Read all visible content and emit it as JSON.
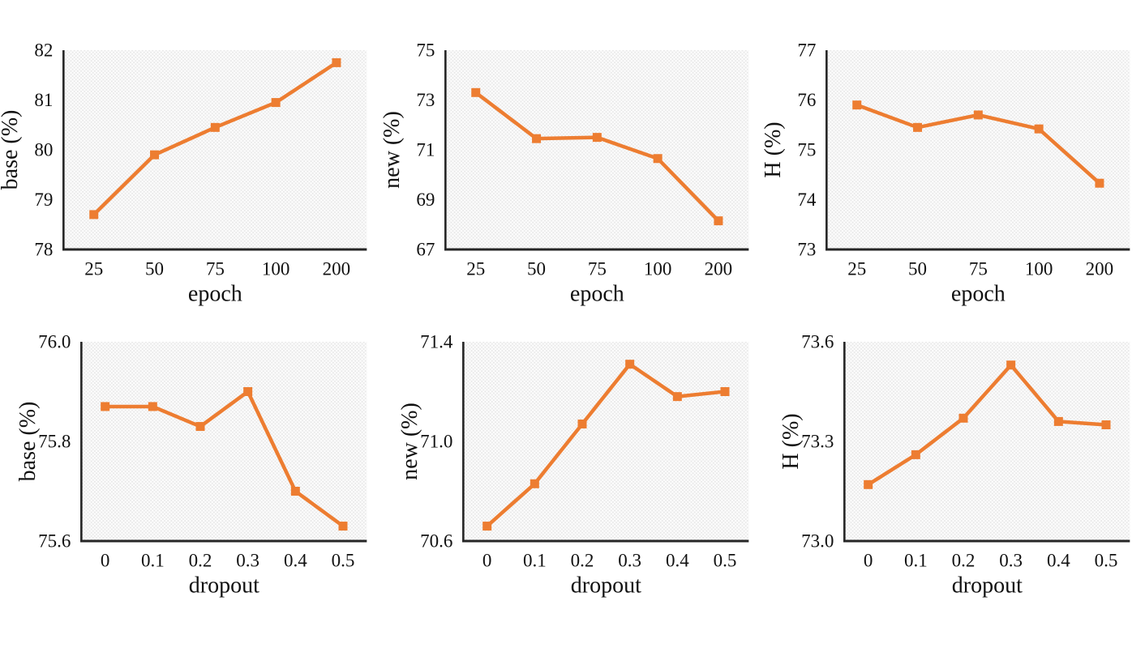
{
  "style": {
    "accent": "#ED7D31",
    "axis_color": "#262626",
    "text_color": "#111111",
    "plot_bg_base": "#fcfcfc",
    "plot_bg_dot": "#e7e7e7",
    "page_bg": "#ffffff"
  },
  "chart_data": [
    {
      "type": "line",
      "title": "",
      "xlabel": "epoch",
      "ylabel": "base (%)",
      "categories": [
        "25",
        "50",
        "75",
        "100",
        "200"
      ],
      "values": [
        78.7,
        79.9,
        80.45,
        80.95,
        81.75
      ],
      "ylim": [
        78,
        82
      ],
      "ytick_values": [
        78,
        79,
        80,
        81,
        82
      ],
      "ytick_labels": [
        "78",
        "79",
        "80",
        "81",
        "82"
      ],
      "grid": false,
      "legend": "none",
      "marker": "square"
    },
    {
      "type": "line",
      "title": "",
      "xlabel": "epoch",
      "ylabel": "new (%)",
      "categories": [
        "25",
        "50",
        "75",
        "100",
        "200"
      ],
      "values": [
        73.3,
        71.45,
        71.5,
        70.65,
        68.15
      ],
      "ylim": [
        67,
        75
      ],
      "ytick_values": [
        67,
        69,
        71,
        73,
        75
      ],
      "ytick_labels": [
        "67",
        "69",
        "71",
        "73",
        "75"
      ],
      "grid": false,
      "legend": "none",
      "marker": "square"
    },
    {
      "type": "line",
      "title": "",
      "xlabel": "epoch",
      "ylabel": "H (%)",
      "categories": [
        "25",
        "50",
        "75",
        "100",
        "200"
      ],
      "values": [
        75.9,
        75.45,
        75.7,
        75.42,
        74.33
      ],
      "ylim": [
        73,
        77
      ],
      "ytick_values": [
        73,
        74,
        75,
        76,
        77
      ],
      "ytick_labels": [
        "73",
        "74",
        "75",
        "76",
        "77"
      ],
      "grid": false,
      "legend": "none",
      "marker": "square"
    },
    {
      "type": "line",
      "title": "",
      "xlabel": "dropout",
      "ylabel": "base (%)",
      "categories": [
        "0",
        "0.1",
        "0.2",
        "0.3",
        "0.4",
        "0.5"
      ],
      "values": [
        75.87,
        75.87,
        75.83,
        75.9,
        75.7,
        75.63
      ],
      "ylim": [
        75.6,
        76.0
      ],
      "ytick_values": [
        75.6,
        75.8,
        76.0
      ],
      "ytick_labels": [
        "75.6",
        "75.8",
        "76.0"
      ],
      "grid": false,
      "legend": "none",
      "marker": "square"
    },
    {
      "type": "line",
      "title": "",
      "xlabel": "dropout",
      "ylabel": "new (%)",
      "categories": [
        "0",
        "0.1",
        "0.2",
        "0.3",
        "0.4",
        "0.5"
      ],
      "values": [
        70.66,
        70.83,
        71.07,
        71.31,
        71.18,
        71.2
      ],
      "ylim": [
        70.6,
        71.4
      ],
      "ytick_values": [
        70.6,
        71.0,
        71.4
      ],
      "ytick_labels": [
        "70.6",
        "71.0",
        "71.4"
      ],
      "grid": false,
      "legend": "none",
      "marker": "square"
    },
    {
      "type": "line",
      "title": "",
      "xlabel": "dropout",
      "ylabel": "H (%)",
      "categories": [
        "0",
        "0.1",
        "0.2",
        "0.3",
        "0.4",
        "0.5"
      ],
      "values": [
        73.17,
        73.26,
        73.37,
        73.53,
        73.36,
        73.35
      ],
      "ylim": [
        73.0,
        73.6
      ],
      "ytick_values": [
        73.0,
        73.3,
        73.6
      ],
      "ytick_labels": [
        "73.0",
        "73.3",
        "73.6"
      ],
      "grid": false,
      "legend": "none",
      "marker": "square"
    }
  ]
}
